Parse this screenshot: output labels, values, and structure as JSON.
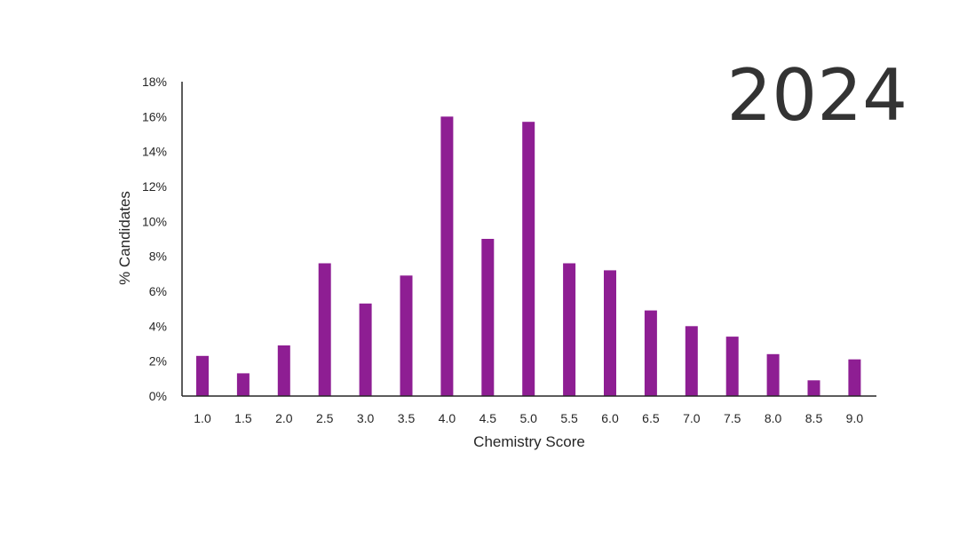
{
  "chart_data": {
    "type": "bar",
    "title": "2024",
    "xlabel": "Chemistry Score",
    "ylabel": "% Candidates",
    "categories": [
      "1.0",
      "1.5",
      "2.0",
      "2.5",
      "3.0",
      "3.5",
      "4.0",
      "4.5",
      "5.0",
      "5.5",
      "6.0",
      "6.5",
      "7.0",
      "7.5",
      "8.0",
      "8.5",
      "9.0"
    ],
    "values": [
      2.3,
      1.3,
      2.9,
      7.6,
      5.3,
      6.9,
      16.0,
      9.0,
      15.7,
      7.6,
      7.2,
      4.9,
      4.0,
      3.4,
      2.4,
      0.9,
      2.1
    ],
    "ylim": [
      0,
      18
    ],
    "yticks": [
      0,
      2,
      4,
      6,
      8,
      10,
      12,
      14,
      16,
      18
    ],
    "ytick_labels": [
      "0%",
      "2%",
      "4%",
      "6%",
      "8%",
      "10%",
      "12%",
      "14%",
      "16%",
      "18%"
    ],
    "grid": false,
    "legend": "none",
    "bar_color": "#8e1e93"
  }
}
